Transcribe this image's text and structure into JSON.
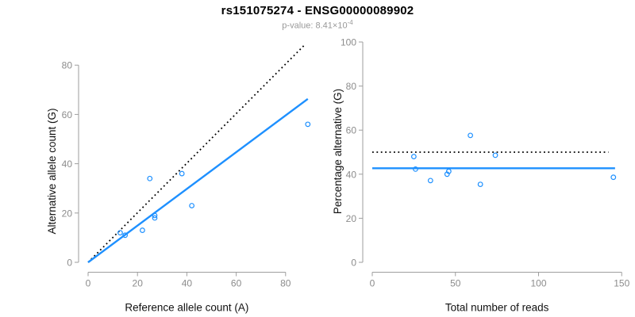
{
  "header": {
    "title": "rs151075274 - ENSG00000089902",
    "subtitle_prefix": "p-value: 8.41×10",
    "subtitle_exponent": "-4"
  },
  "colors": {
    "accent_blue": "#1E90FF",
    "line_black": "#000000",
    "tick_label_gray": "#8c8c8c",
    "axis_gray": "#9e9e9e",
    "axis_label_black": "#111111",
    "subtitle_gray": "#999999",
    "background": "#ffffff"
  },
  "chart_data": [
    {
      "type": "scatter",
      "name": "allele-count-scatter",
      "title": "",
      "xlabel": "Reference allele count (A)",
      "ylabel": "Alternative allele count (G)",
      "xlim": [
        0,
        90
      ],
      "ylim": [
        0,
        90
      ],
      "xticks": [
        0,
        20,
        40,
        60,
        80
      ],
      "yticks": [
        0,
        20,
        40,
        60,
        80
      ],
      "grid": false,
      "legend": "none",
      "marker": "open-circle",
      "points": [
        [
          13,
          12
        ],
        [
          15,
          11
        ],
        [
          22,
          13
        ],
        [
          25,
          34
        ],
        [
          27,
          18
        ],
        [
          27,
          19
        ],
        [
          38,
          36
        ],
        [
          42,
          23
        ],
        [
          89,
          56
        ]
      ],
      "lines": [
        {
          "name": "identity-line",
          "style": "dotted",
          "color": "#000000",
          "x1": 0,
          "y1": 0,
          "x2": 88,
          "y2": 88.5
        },
        {
          "name": "regression-line",
          "style": "solid",
          "color": "#1E90FF",
          "x1": 0,
          "y1": 0,
          "x2": 89,
          "y2": 66.3
        }
      ]
    },
    {
      "type": "scatter",
      "name": "percentage-alternative-scatter",
      "title": "",
      "xlabel": "Total number of reads",
      "ylabel": "Percentage alternative (G)",
      "xlim": [
        0,
        150
      ],
      "ylim": [
        0,
        100
      ],
      "xticks": [
        0,
        50,
        100,
        150
      ],
      "yticks": [
        0,
        20,
        40,
        60,
        80,
        100
      ],
      "grid": false,
      "legend": "none",
      "marker": "open-circle",
      "points": [
        [
          25,
          48
        ],
        [
          26,
          42.3
        ],
        [
          35,
          37.1
        ],
        [
          45,
          40
        ],
        [
          46,
          41.3
        ],
        [
          59,
          57.6
        ],
        [
          65,
          35.4
        ],
        [
          74,
          48.6
        ],
        [
          145,
          38.6
        ]
      ],
      "lines": [
        {
          "name": "expected-50pct-line",
          "style": "dotted",
          "color": "#000000",
          "x1": 0,
          "y1": 50,
          "x2": 142,
          "y2": 50
        },
        {
          "name": "fitted-percentage-line",
          "style": "solid",
          "color": "#1E90FF",
          "x1": 0,
          "y1": 42.7,
          "x2": 146,
          "y2": 42.7
        }
      ]
    }
  ]
}
